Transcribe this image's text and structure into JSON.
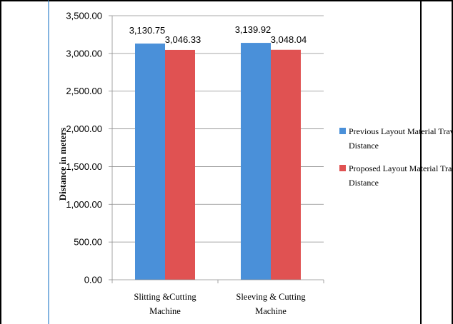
{
  "chart_data": {
    "type": "bar",
    "title": "",
    "xlabel": "",
    "ylabel": "Distance in meters",
    "ylim": [
      0,
      3500
    ],
    "yticks": [
      0,
      500,
      1000,
      1500,
      2000,
      2500,
      3000,
      3500
    ],
    "ytick_labels": [
      "0.00",
      "500.00",
      "1,000.00",
      "1,500.00",
      "2,000.00",
      "2,500.00",
      "3,000.00",
      "3,500.00"
    ],
    "grid": true,
    "legend_position": "right",
    "categories": [
      [
        "Slitting &Cutting",
        "Machine"
      ],
      [
        "Sleeving & Cutting",
        "Machine"
      ]
    ],
    "series": [
      {
        "name": [
          "Previous Layout Material Travel",
          "Distance"
        ],
        "color": "#4A90D9",
        "values": [
          3130.75,
          3139.92
        ],
        "labels": [
          "3,130.75",
          "3,139.92"
        ]
      },
      {
        "name": [
          "Proposed Layout Material Travel",
          "Distance"
        ],
        "color": "#E05252",
        "values": [
          3046.33,
          3048.04
        ],
        "labels": [
          "3,046.33",
          "3,048.04"
        ]
      }
    ]
  }
}
